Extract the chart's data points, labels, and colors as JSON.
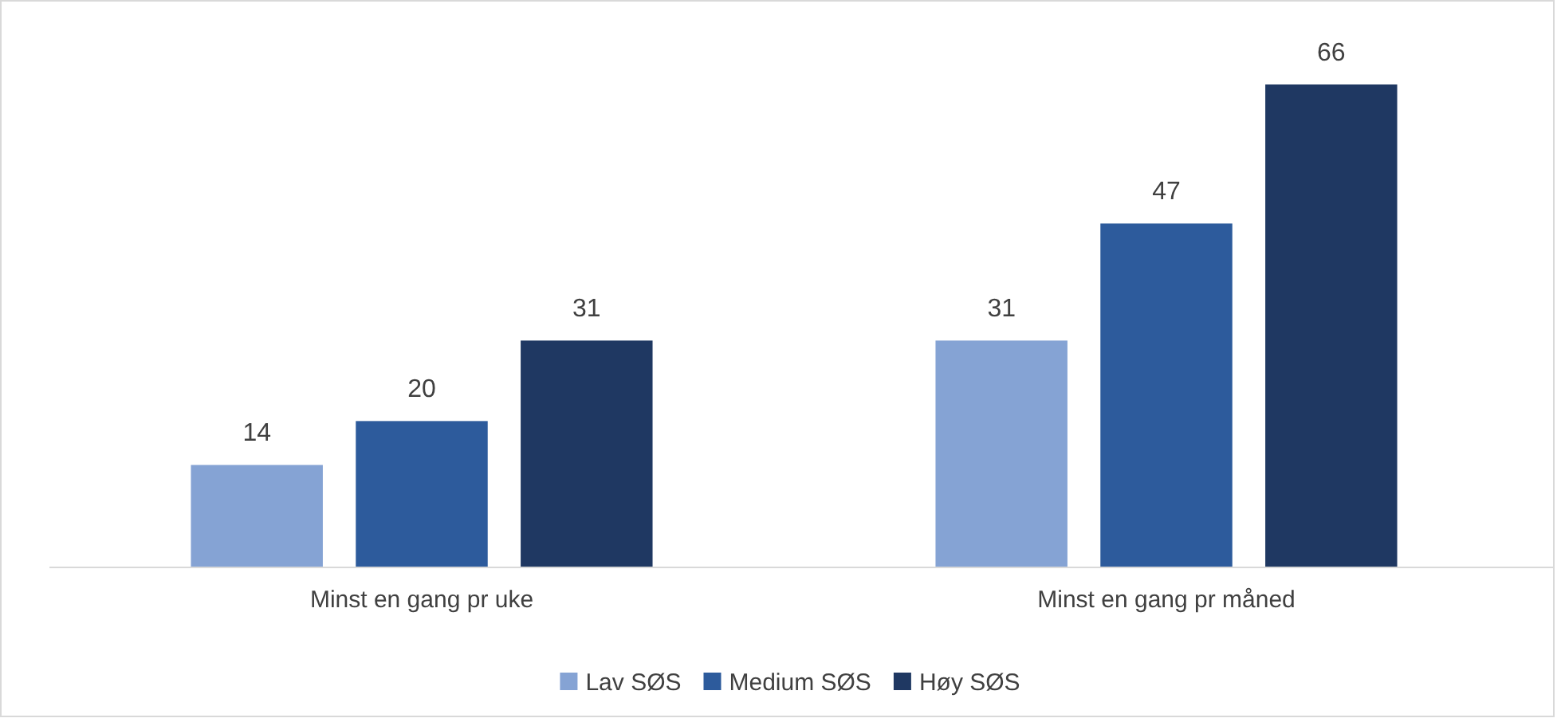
{
  "chart_data": {
    "type": "bar",
    "categories": [
      "Minst en gang pr uke",
      "Minst en gang pr måned"
    ],
    "series": [
      {
        "name": "Lav SØS",
        "color": "#85a3d4",
        "values": [
          14,
          31
        ]
      },
      {
        "name": "Medium SØS",
        "color": "#2d5b9c",
        "values": [
          20,
          47
        ]
      },
      {
        "name": "Høy SØS",
        "color": "#1f3862",
        "values": [
          31,
          66
        ]
      }
    ],
    "data_labels": true,
    "legend": "bottom"
  }
}
